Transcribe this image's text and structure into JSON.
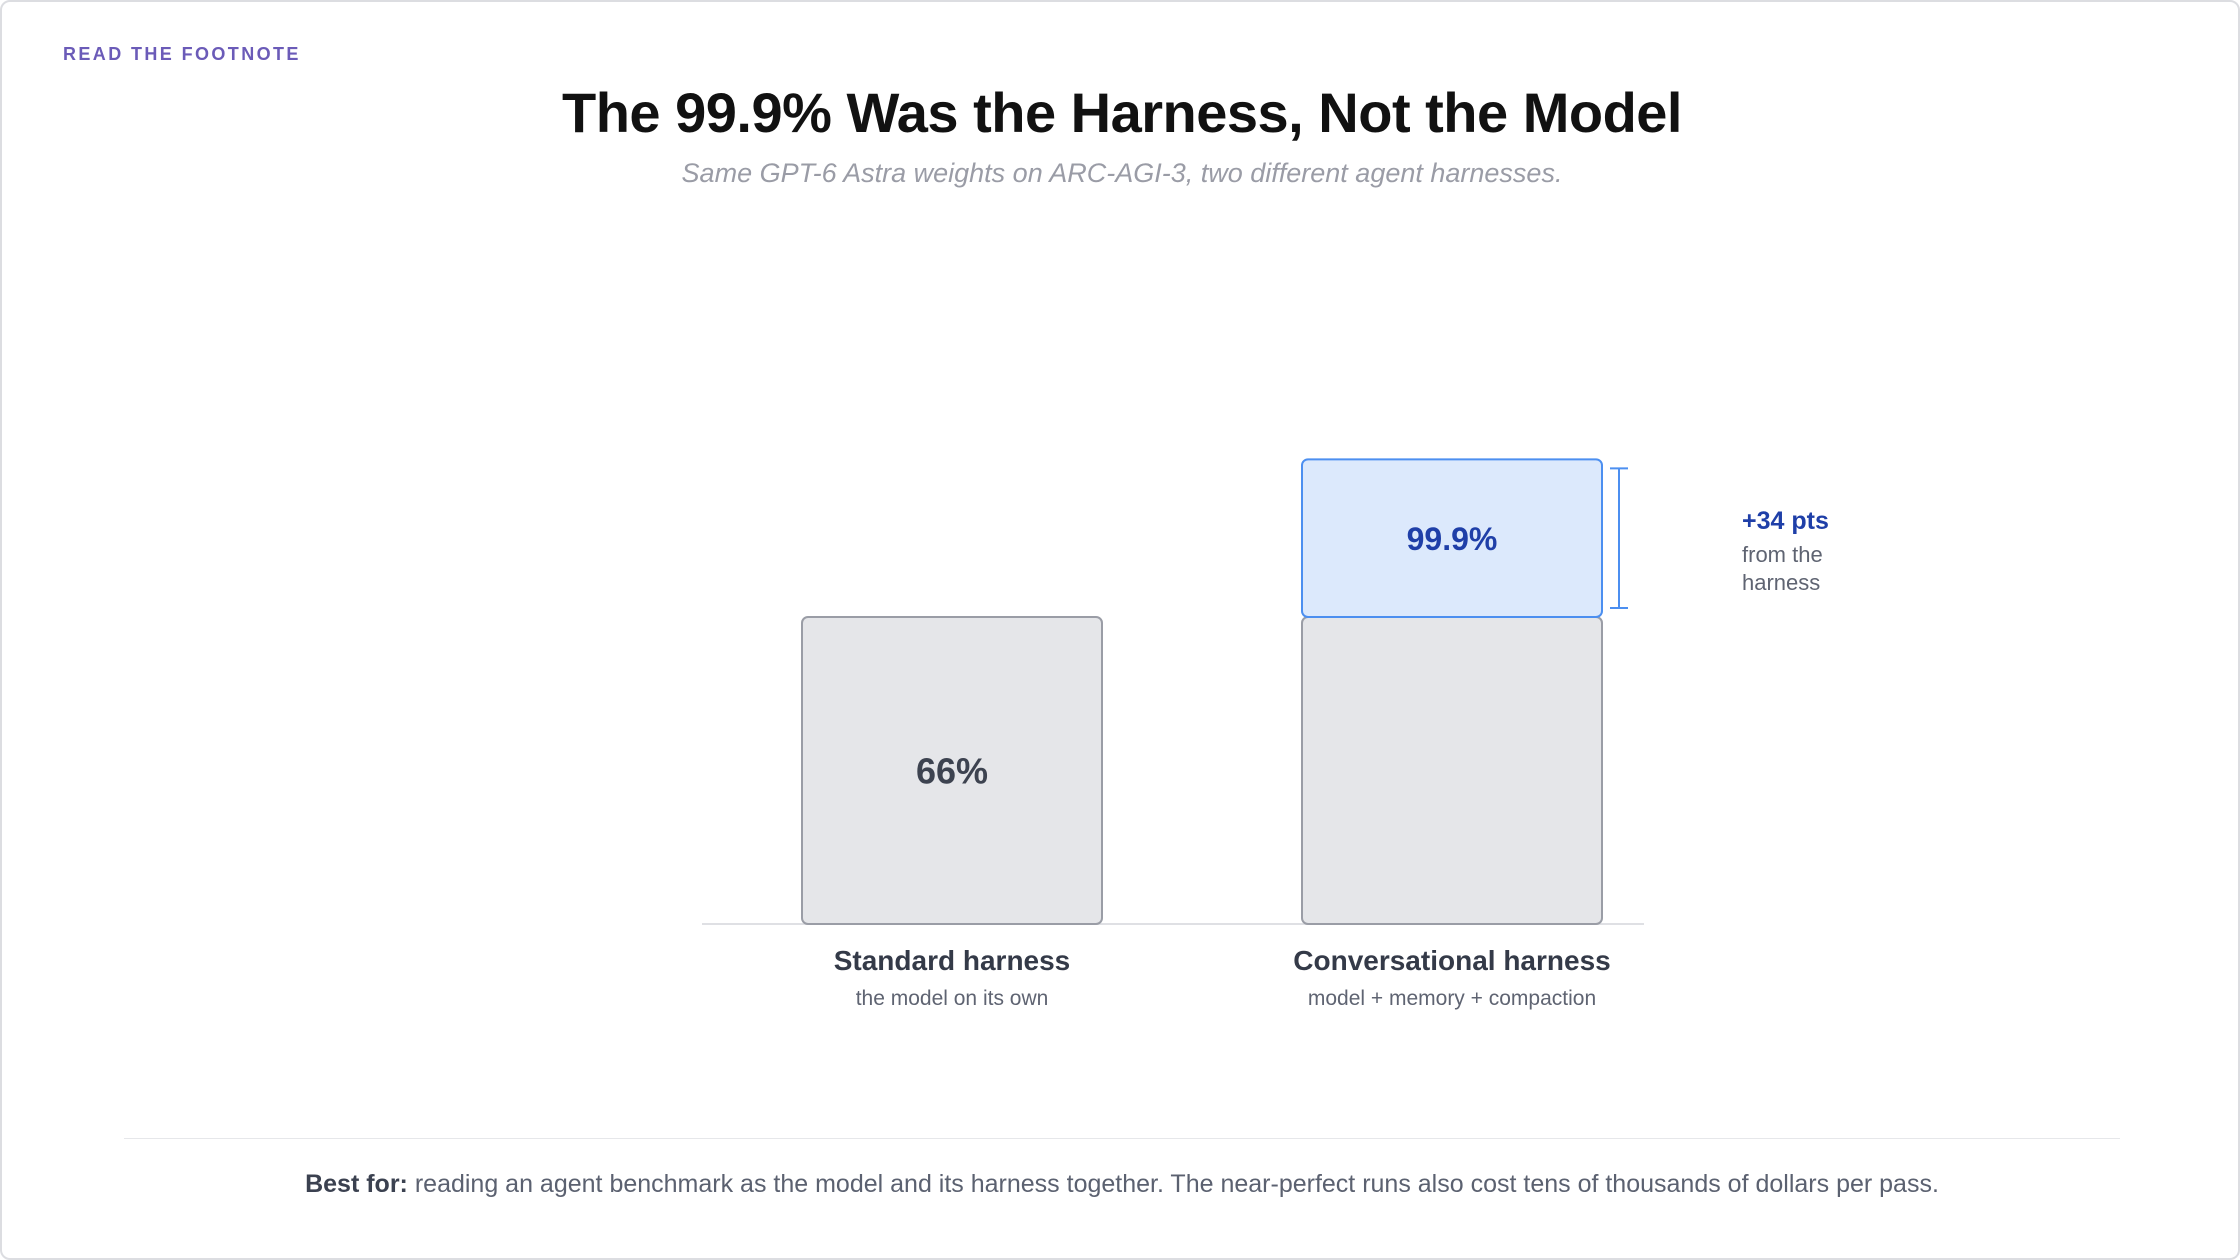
{
  "kicker": "READ THE FOOTNOTE",
  "title": "The 99.9% Was the Harness, Not the Model",
  "subtitle": "Same GPT-6 Astra weights on ARC-AGI-3, two different agent harnesses.",
  "footnote": {
    "label": "Best for:",
    "text": " reading an agent benchmark as the model and its harness together. The near-perfect runs also cost tens of thousands of dollars per pass."
  },
  "colors": {
    "base_fill": "#e5e6e9",
    "base_stroke": "#9a9da6",
    "gain_fill": "#dce9fc",
    "gain_stroke": "#4c8ff0",
    "gain_text": "#1f3fa8",
    "base_text": "#3d4350",
    "label_text": "#343a48",
    "sublabel_text": "#5f6472",
    "axis": "#dfe0e4",
    "kicker": "#6b5bb8"
  },
  "chart_data": {
    "type": "bar",
    "categories": [
      "Standard harness",
      "Conversational harness"
    ],
    "category_sublabels": [
      "the model on its own",
      "model + memory + compaction"
    ],
    "values": [
      66,
      99.9
    ],
    "value_labels": [
      "66%",
      "99.9%"
    ],
    "stack_base": 66,
    "stack_gain": 33.9,
    "ylim": [
      0,
      100
    ],
    "grid": false,
    "annotation": {
      "value": "+34 pts",
      "text_line1": "from the",
      "text_line2": "harness"
    }
  }
}
